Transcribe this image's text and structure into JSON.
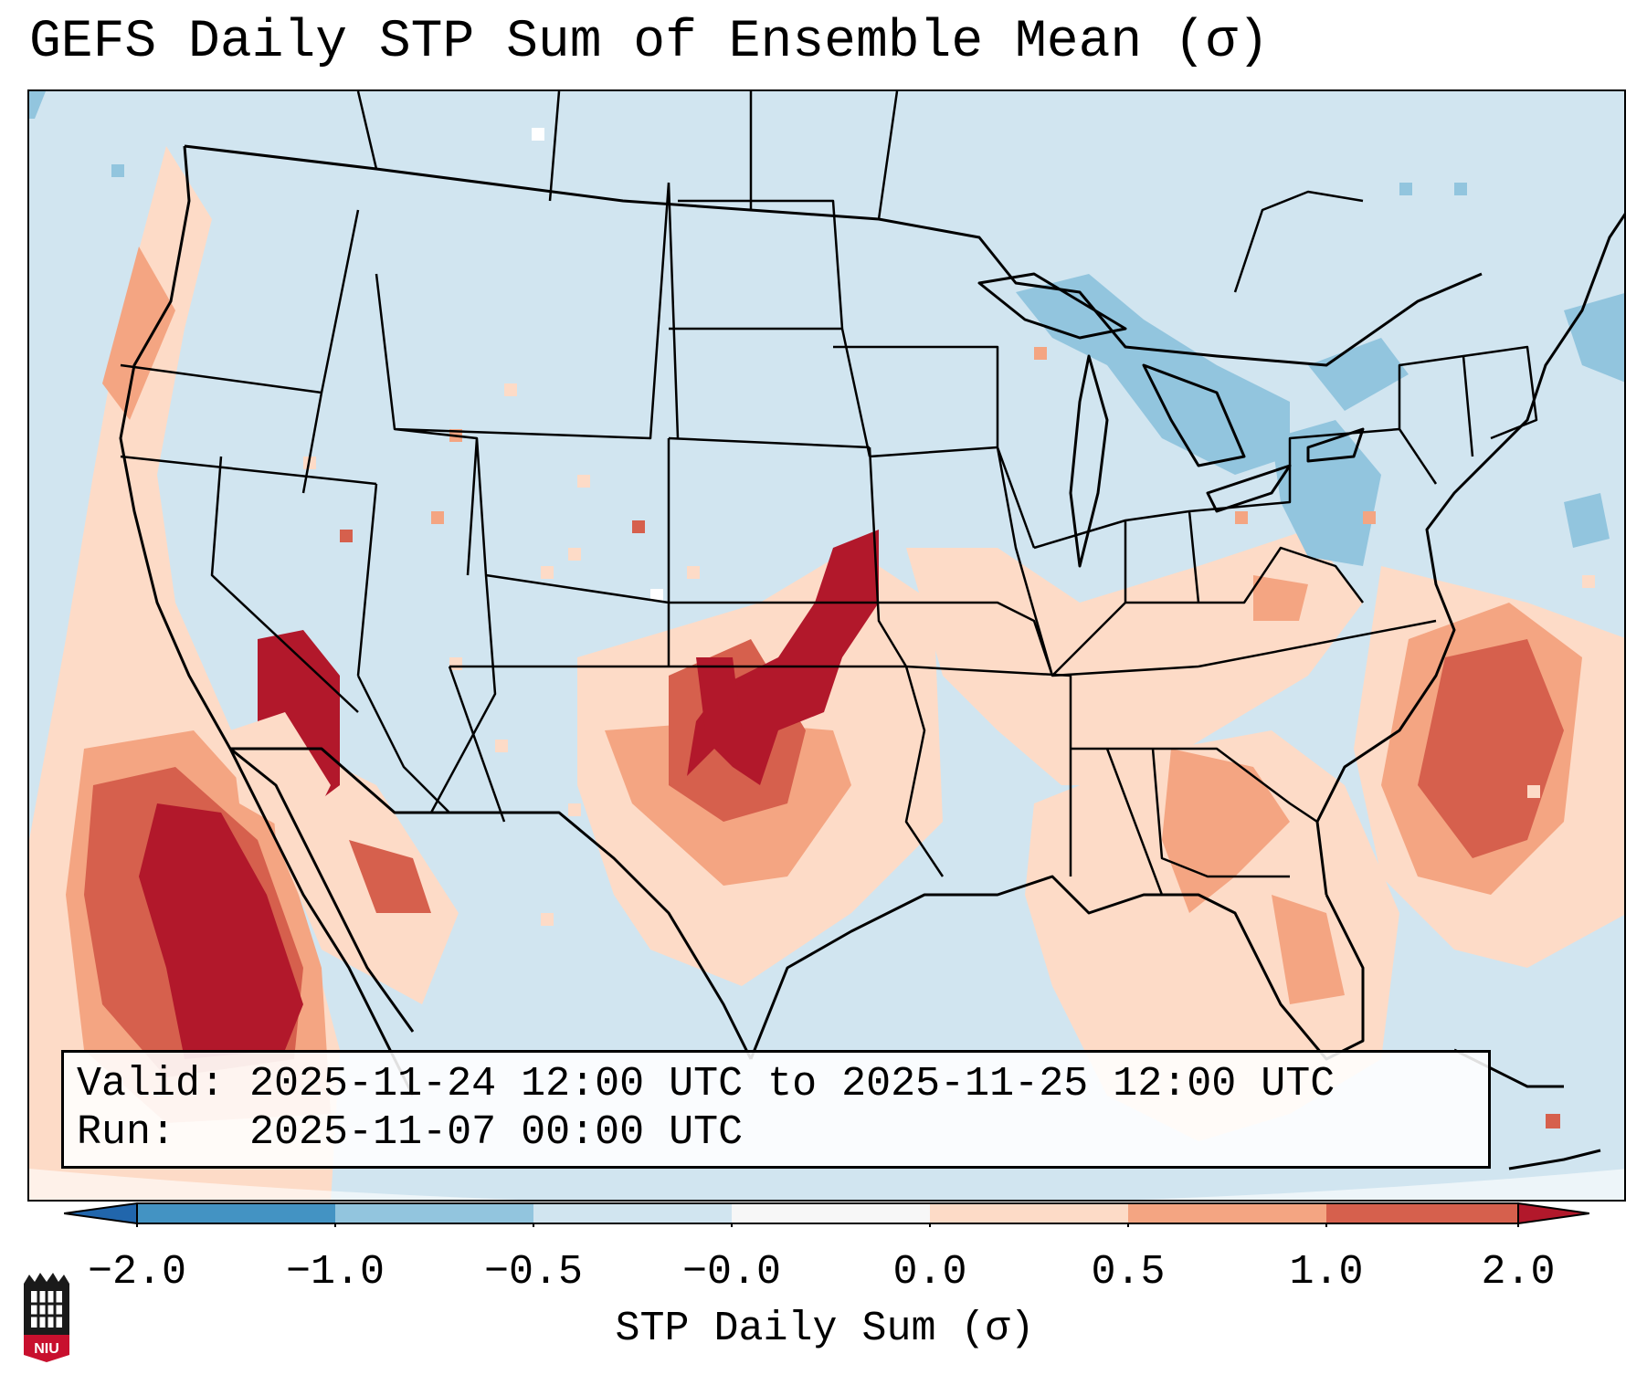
{
  "title": "GEFS Daily STP Sum of Ensemble Mean (σ)",
  "info": {
    "valid_label": "Valid:",
    "valid_text": "2025-11-24 12:00 UTC to 2025-11-25 12:00 UTC",
    "run_label": "Run:",
    "run_text": "2025-11-07 00:00 UTC"
  },
  "colorbar": {
    "label": "STP Daily Sum (σ)",
    "ticks": [
      "−2.0",
      "−1.0",
      "−0.5",
      "−0.0",
      "0.0",
      "0.5",
      "1.0",
      "2.0"
    ],
    "colors": [
      "#4393c3",
      "#92c5de",
      "#d1e5f0",
      "#f7f7f7",
      "#fddbc7",
      "#f4a582",
      "#d6604d",
      "#b2182b"
    ],
    "under_color": "#2166ac",
    "over_color": "#b2182b"
  },
  "map": {
    "background_color": "#d1e5f0",
    "regions": [
      {
        "name": "pacific-positive-anomaly",
        "level": "high"
      },
      {
        "name": "southern-plains-positive-anomaly",
        "level": "high"
      },
      {
        "name": "southeast-positive-anomaly",
        "level": "moderate"
      },
      {
        "name": "atlantic-positive-anomaly",
        "level": "moderate"
      },
      {
        "name": "great-lakes-negative-anomaly",
        "level": "low"
      },
      {
        "name": "northeast-negative-anomaly",
        "level": "low"
      }
    ]
  },
  "logo": {
    "text": "NIU"
  }
}
